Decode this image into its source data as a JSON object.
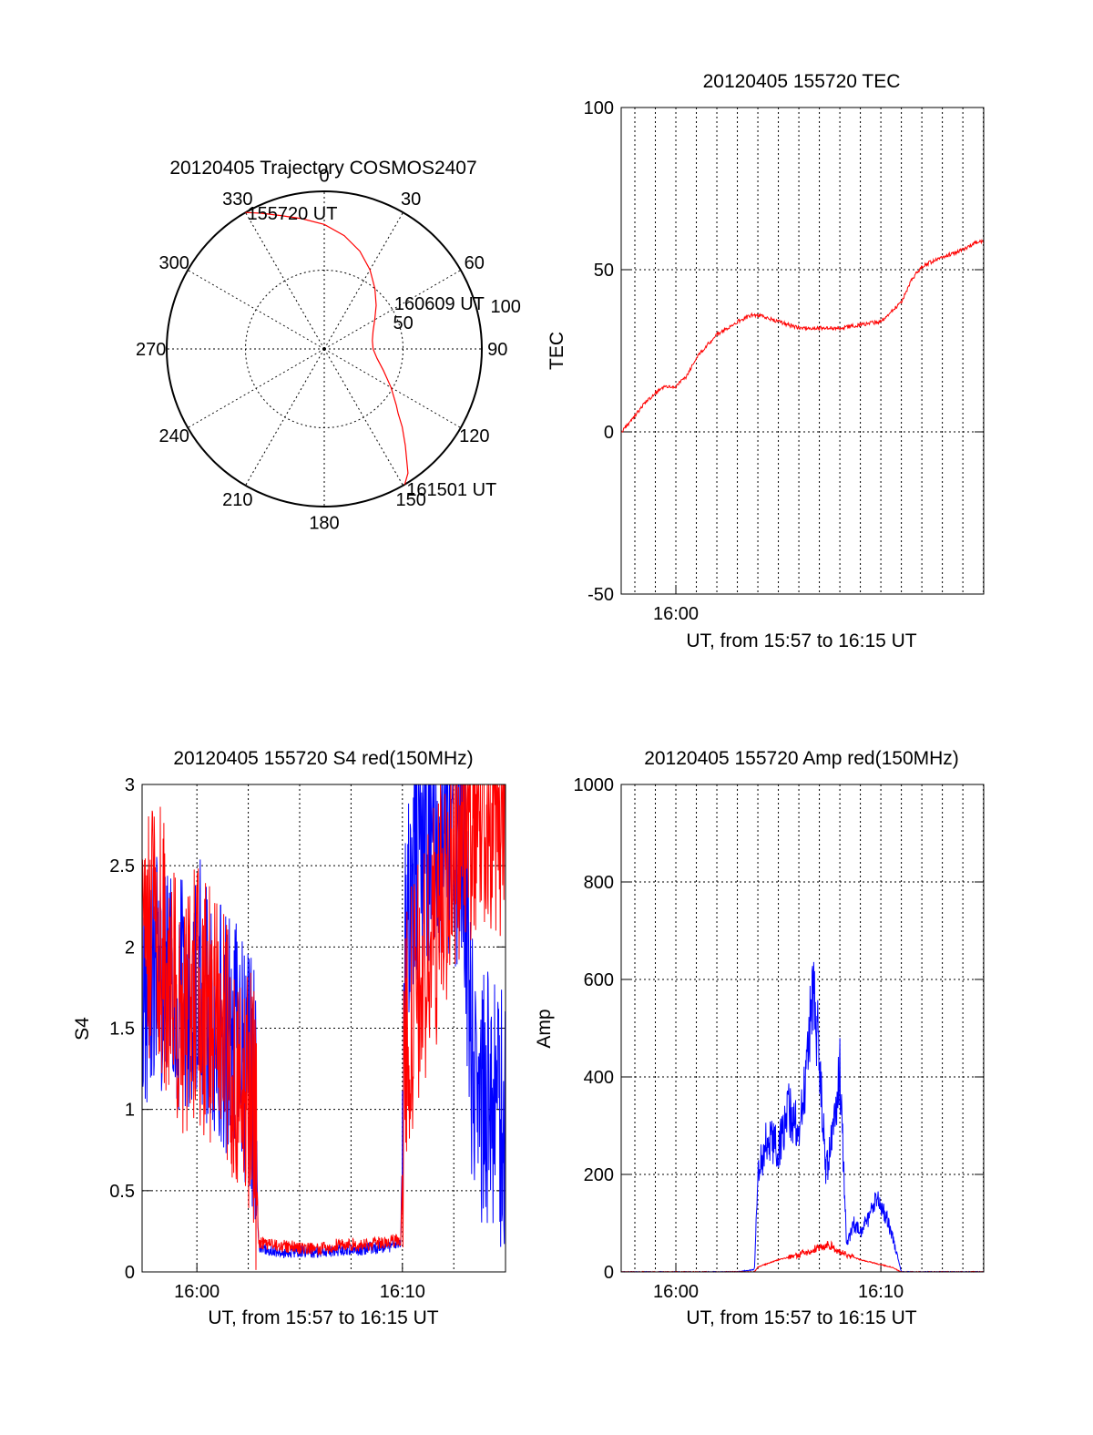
{
  "chart_data": [
    {
      "type": "polar",
      "title": "20120405 Trajectory COSMOS2407",
      "angle_labels": [
        "0",
        "30",
        "60",
        "90",
        "120",
        "150",
        "180",
        "210",
        "240",
        "270",
        "300",
        "330"
      ],
      "angle_values": [
        0,
        30,
        60,
        90,
        120,
        150,
        180,
        210,
        240,
        270,
        300,
        330
      ],
      "radius_labels": [
        "50",
        "100"
      ],
      "radius_values": [
        50,
        100
      ],
      "rlim": [
        0,
        100
      ],
      "series": [
        {
          "color": "#ff0000",
          "azimuth": [
            -30,
            -25,
            -18,
            -10,
            0,
            10,
            20,
            30,
            40,
            50,
            60,
            70,
            80,
            90,
            100,
            110,
            120,
            128,
            131,
            135,
            140,
            146,
            149.3
          ],
          "radius": [
            100,
            95,
            89,
            84,
            79,
            73,
            66,
            58,
            50,
            43,
            37,
            33,
            31,
            31,
            34,
            40,
            49,
            58,
            62,
            70,
            80,
            95,
            100
          ]
        }
      ],
      "annotations": [
        {
          "text": "155720 UT",
          "azimuth": -30,
          "radius": 100
        },
        {
          "text": "160609 UT",
          "azimuth": 60,
          "radius": 50
        },
        {
          "text": "161501 UT",
          "azimuth": 149.3,
          "radius": 100
        }
      ],
      "colors": {
        "trajectory": "#ff0000"
      }
    },
    {
      "type": "line",
      "title": "20120405 155720 TEC",
      "xlabel": "UT, from 15:57 to 16:15 UT",
      "ylabel": "TEC",
      "xlim": [
        "15:57:20",
        "16:15:01"
      ],
      "ylim": [
        -50,
        100
      ],
      "yticks": [
        "-50",
        "0",
        "50",
        "100"
      ],
      "xtick_labels": [
        {
          "label": "16:00",
          "time": "16:00"
        }
      ],
      "grid_minutes": [
        "15:58",
        "15:59",
        "16:00",
        "16:01",
        "16:02",
        "16:03",
        "16:04",
        "16:05",
        "16:06",
        "16:07",
        "16:08",
        "16:09",
        "16:10",
        "16:11",
        "16:12",
        "16:13",
        "16:14",
        "16:15"
      ],
      "series": [
        {
          "color": "#ff0000",
          "x": [
            "15:57:20",
            "15:58:00",
            "15:58:30",
            "15:59:00",
            "15:59:30",
            "16:00:00",
            "16:00:30",
            "16:01:00",
            "16:02:00",
            "16:03:00",
            "16:03:40",
            "16:04:00",
            "16:04:30",
            "16:05:00",
            "16:06:00",
            "16:07:00",
            "16:08:00",
            "16:09:00",
            "16:10:00",
            "16:11:00",
            "16:11:30",
            "16:12:00",
            "16:13:00",
            "16:14:00",
            "16:14:30",
            "16:15:01"
          ],
          "y": [
            0,
            5,
            9,
            12,
            14,
            14,
            17,
            23,
            30,
            34,
            36,
            36,
            35,
            34,
            32,
            32,
            32,
            33,
            34,
            40,
            47,
            51,
            54,
            56,
            58,
            59
          ]
        }
      ],
      "colors": {
        "line": "#ff0000"
      }
    },
    {
      "type": "line",
      "title": "20120405 155720 S4 red(150MHz)",
      "xlabel": "UT, from 15:57 to 16:15 UT",
      "ylabel": "S4",
      "xlim": [
        "15:57:20",
        "16:15:01"
      ],
      "ylim": [
        0,
        3
      ],
      "yticks": [
        "0",
        "0.5",
        "1",
        "1.5",
        "2",
        "2.5",
        "3"
      ],
      "xtick_labels": [
        {
          "label": "16:00",
          "time": "16:00"
        },
        {
          "label": "16:10",
          "time": "16:10"
        }
      ],
      "grid_minutes": [
        "16:00",
        "16:02.5",
        "16:05",
        "16:07.5",
        "16:10",
        "16:12.5"
      ],
      "series": [
        {
          "name": "",
          "color": "#0000ff",
          "x": [
            "15:57:20",
            "15:58:00",
            "15:59:00",
            "16:00:00",
            "16:01:00",
            "16:02:00",
            "16:02:50",
            "16:03:00",
            "16:04:00",
            "16:05:00",
            "16:06:00",
            "16:07:00",
            "16:08:00",
            "16:09:00",
            "16:09:55",
            "16:10:10",
            "16:11:00",
            "16:12:00",
            "16:13:00",
            "16:13:30",
            "16:14:00",
            "16:15:01"
          ],
          "y": [
            1.8,
            1.9,
            1.7,
            1.8,
            1.6,
            1.4,
            1.1,
            0.15,
            0.12,
            0.13,
            0.12,
            0.14,
            0.14,
            0.15,
            0.17,
            2.3,
            2.6,
            2.8,
            2.5,
            1.0,
            1.1,
            0.9
          ]
        },
        {
          "name": "",
          "color": "#ff0000",
          "x": [
            "15:57:20",
            "15:58:00",
            "15:59:00",
            "16:00:00",
            "16:01:00",
            "16:02:00",
            "16:02:50",
            "16:03:00",
            "16:04:00",
            "16:05:00",
            "16:06:00",
            "16:07:00",
            "16:08:00",
            "16:09:00",
            "16:09:55",
            "16:10:10",
            "16:11:00",
            "16:12:00",
            "16:13:00",
            "16:14:00",
            "16:15:01"
          ],
          "y": [
            2.0,
            2.2,
            1.6,
            1.7,
            1.5,
            1.3,
            1.0,
            0.18,
            0.16,
            0.15,
            0.14,
            0.17,
            0.16,
            0.18,
            0.2,
            1.5,
            1.8,
            2.4,
            2.8,
            2.9,
            2.8
          ]
        }
      ],
      "colors": {
        "red_series": "#ff0000",
        "blue_series": "#0000ff"
      }
    },
    {
      "type": "line",
      "title": "20120405 155720 Amp red(150MHz)",
      "xlabel": "UT, from 15:57 to 16:15 UT",
      "ylabel": "Amp",
      "xlim": [
        "15:57:20",
        "16:15:01"
      ],
      "ylim": [
        0,
        1000
      ],
      "yticks": [
        "0",
        "200",
        "400",
        "600",
        "800",
        "1000"
      ],
      "xtick_labels": [
        {
          "label": "16:00",
          "time": "16:00"
        },
        {
          "label": "16:10",
          "time": "16:10"
        }
      ],
      "grid_minutes": [
        "15:58",
        "15:59",
        "16:00",
        "16:01",
        "16:02",
        "16:03",
        "16:04",
        "16:05",
        "16:06",
        "16:07",
        "16:08",
        "16:09",
        "16:10",
        "16:11",
        "16:12",
        "16:13",
        "16:14",
        "16:15"
      ],
      "series": [
        {
          "name": "",
          "color": "#0000ff",
          "x": [
            "15:57:20",
            "16:00:00",
            "16:03:00",
            "16:03:50",
            "16:04:00",
            "16:04:30",
            "16:05:00",
            "16:05:30",
            "16:06:00",
            "16:06:20",
            "16:06:40",
            "16:07:00",
            "16:07:20",
            "16:07:40",
            "16:08:00",
            "16:08:20",
            "16:08:40",
            "16:09:00",
            "16:09:30",
            "16:09:50",
            "16:10:20",
            "16:11:00",
            "16:15:01"
          ],
          "y": [
            0,
            0,
            0,
            5,
            200,
            280,
            250,
            330,
            290,
            390,
            600,
            450,
            200,
            300,
            420,
            50,
            100,
            80,
            120,
            150,
            110,
            0,
            0
          ]
        },
        {
          "name": "",
          "color": "#ff0000",
          "x": [
            "15:57:20",
            "16:03:50",
            "16:04:00",
            "16:05:00",
            "16:06:00",
            "16:06:40",
            "16:07:00",
            "16:07:30",
            "16:08:00",
            "16:09:00",
            "16:10:00",
            "16:10:30",
            "16:11:00",
            "16:15:01"
          ],
          "y": [
            0,
            0,
            10,
            25,
            35,
            45,
            50,
            55,
            40,
            25,
            15,
            10,
            0,
            0
          ]
        }
      ],
      "colors": {
        "red_series": "#ff0000",
        "blue_series": "#0000ff"
      }
    }
  ]
}
